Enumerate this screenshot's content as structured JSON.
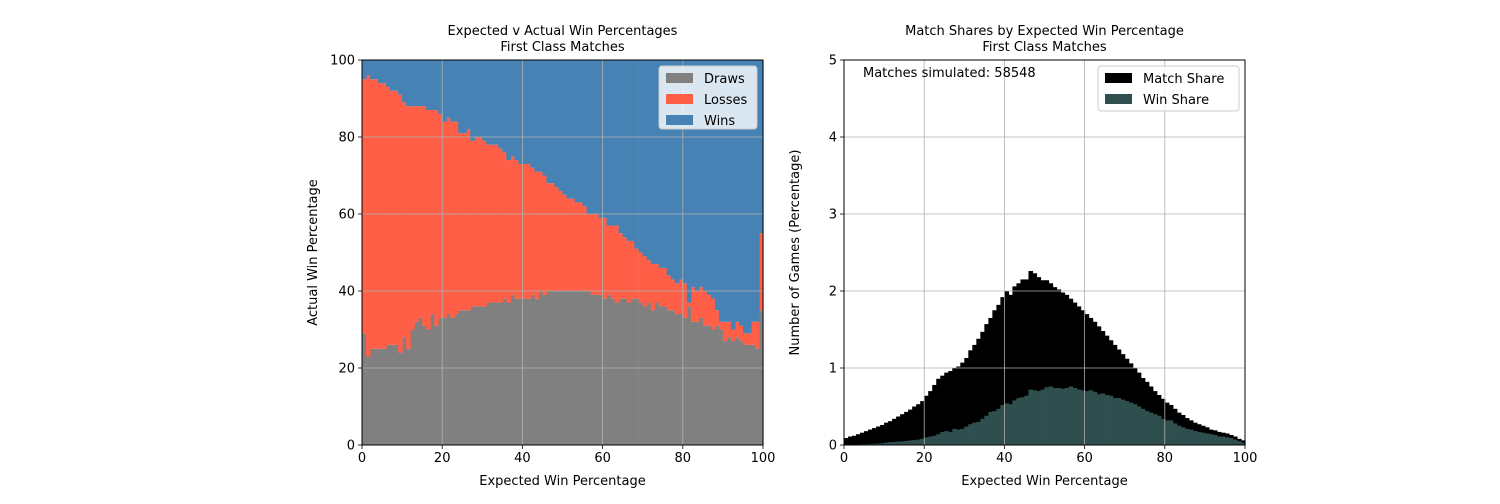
{
  "chart_data": [
    {
      "type": "bar",
      "stacked": true,
      "title": "Expected v Actual Win Percentages",
      "subtitle": "First Class Matches",
      "xlabel": "Expected Win Percentage",
      "ylabel": "Actual Win Percentage",
      "xlim": [
        0,
        100
      ],
      "ylim": [
        0,
        100
      ],
      "xticks": [
        "0",
        "20",
        "40",
        "60",
        "80",
        "100"
      ],
      "yticks": [
        "0",
        "20",
        "40",
        "60",
        "80",
        "100"
      ],
      "grid": true,
      "legend": {
        "position": "top-right"
      },
      "x": [
        0,
        1,
        2,
        3,
        4,
        5,
        6,
        7,
        8,
        9,
        10,
        11,
        12,
        13,
        14,
        15,
        16,
        17,
        18,
        19,
        20,
        21,
        22,
        23,
        24,
        25,
        26,
        27,
        28,
        29,
        30,
        31,
        32,
        33,
        34,
        35,
        36,
        37,
        38,
        39,
        40,
        41,
        42,
        43,
        44,
        45,
        46,
        47,
        48,
        49,
        50,
        51,
        52,
        53,
        54,
        55,
        56,
        57,
        58,
        59,
        60,
        61,
        62,
        63,
        64,
        65,
        66,
        67,
        67.9,
        69,
        70,
        71,
        72,
        73,
        74,
        75,
        76,
        77,
        78,
        79,
        80,
        81,
        82,
        83,
        84,
        85,
        86,
        87,
        88,
        89,
        90,
        91,
        92,
        93,
        94,
        95,
        96,
        97,
        98,
        99
      ],
      "series": [
        {
          "name": "Draws",
          "color": "#808080",
          "values": [
            29,
            23,
            25,
            25,
            25,
            25,
            26,
            26,
            26,
            24,
            28,
            25,
            30,
            32,
            33,
            31,
            30,
            34,
            31,
            33,
            33,
            34,
            33,
            34,
            35,
            35,
            35,
            36,
            36,
            36,
            36,
            37,
            37,
            37,
            37,
            38,
            37,
            39,
            38,
            38,
            38,
            38,
            39,
            38,
            40,
            39,
            40,
            40,
            40,
            40,
            40,
            40,
            40,
            40,
            40,
            40,
            40,
            39,
            39,
            39,
            38,
            39,
            38,
            37,
            38,
            38,
            37,
            38,
            38,
            37,
            36,
            37,
            35,
            37,
            36,
            36,
            35,
            35,
            34,
            34,
            33,
            36,
            32,
            32,
            33,
            31,
            31,
            30,
            31,
            30,
            27,
            28,
            27,
            28,
            27,
            26,
            26,
            26,
            25,
            35
          ]
        },
        {
          "name": "Losses",
          "color": "#ff5f47",
          "values": [
            66,
            73,
            70,
            70,
            69,
            69,
            67,
            66,
            66,
            67,
            61,
            63,
            58,
            56,
            55,
            57,
            57,
            53,
            56,
            53,
            51,
            51,
            51,
            50,
            46,
            46,
            47,
            43,
            44,
            44,
            43,
            41,
            41,
            41,
            40,
            38,
            37,
            36,
            36,
            35,
            35,
            35,
            33,
            33,
            31,
            31,
            28,
            28,
            27,
            26,
            25,
            24,
            24,
            23,
            23,
            22,
            20,
            21,
            21,
            20,
            21,
            18,
            19,
            20,
            17,
            16,
            16,
            15,
            13,
            13,
            13,
            11,
            12,
            10,
            10,
            10,
            9,
            8,
            8,
            9,
            9,
            1,
            9,
            8,
            8,
            9,
            8,
            8,
            4,
            2,
            5,
            4,
            3,
            4,
            4,
            3,
            3,
            6,
            7,
            20
          ]
        },
        {
          "name": "Wins",
          "color": "#4682b4",
          "values": [
            5,
            4,
            5,
            5,
            6,
            6,
            7,
            8,
            8,
            9,
            11,
            12,
            12,
            12,
            12,
            12,
            13,
            13,
            13,
            14,
            16,
            15,
            16,
            16,
            19,
            19,
            18,
            21,
            20,
            20,
            21,
            22,
            22,
            22,
            23,
            24,
            26,
            25,
            26,
            27,
            27,
            27,
            28,
            29,
            29,
            30,
            32,
            32,
            33,
            34,
            35,
            36,
            36,
            37,
            37,
            38,
            40,
            40,
            40,
            41,
            41,
            43,
            43,
            43,
            45,
            46,
            47,
            47,
            49,
            50,
            51,
            52,
            53,
            53,
            54,
            54,
            56,
            57,
            58,
            57,
            58,
            63,
            59,
            60,
            59,
            60,
            61,
            62,
            65,
            68,
            68,
            68,
            70,
            68,
            69,
            71,
            71,
            68,
            68,
            45
          ]
        }
      ]
    },
    {
      "type": "bar",
      "stacked": false,
      "title": "Match Shares by Expected Win Percentage",
      "subtitle": "First Class Matches",
      "xlabel": "Expected Win Percentage",
      "ylabel": "Number of Games (Percentage)",
      "xlim": [
        0,
        100
      ],
      "ylim": [
        0,
        5
      ],
      "xticks": [
        "0",
        "20",
        "40",
        "60",
        "80",
        "100"
      ],
      "yticks": [
        "0",
        "1",
        "2",
        "3",
        "4",
        "5"
      ],
      "grid": true,
      "legend": {
        "position": "top-right"
      },
      "annotation": "Matches simulated: 58548",
      "x": [
        0,
        1,
        2,
        3,
        4,
        5,
        6,
        7,
        8,
        9,
        10,
        11,
        12,
        13,
        14,
        15,
        16,
        17,
        18,
        19,
        20,
        21,
        22,
        23,
        24,
        25,
        26,
        27,
        28,
        29,
        30,
        31,
        32,
        33,
        34,
        35,
        36,
        37,
        38,
        39,
        40,
        41,
        42,
        43,
        44,
        45,
        46,
        47,
        48,
        49,
        50,
        51,
        52,
        53,
        54,
        55,
        56,
        57,
        58,
        59,
        60,
        61,
        62,
        63,
        64,
        65,
        66,
        67,
        68,
        69,
        70,
        71,
        72,
        73,
        74,
        75,
        76,
        77,
        78,
        79,
        80,
        81,
        82,
        83,
        84,
        85,
        86,
        87,
        88,
        89,
        90,
        91,
        92,
        93,
        94,
        95,
        96,
        97,
        98,
        99
      ],
      "series": [
        {
          "name": "Match Share",
          "color": "#000000",
          "values": [
            0.09,
            0.11,
            0.12,
            0.14,
            0.16,
            0.18,
            0.2,
            0.22,
            0.24,
            0.26,
            0.29,
            0.31,
            0.34,
            0.37,
            0.4,
            0.43,
            0.46,
            0.5,
            0.53,
            0.57,
            0.64,
            0.7,
            0.78,
            0.86,
            0.9,
            0.94,
            0.96,
            1.0,
            1.02,
            1.07,
            1.13,
            1.23,
            1.3,
            1.38,
            1.47,
            1.57,
            1.65,
            1.75,
            1.82,
            1.92,
            2.0,
            1.95,
            2.06,
            2.1,
            2.15,
            2.15,
            2.26,
            2.23,
            2.18,
            2.14,
            2.14,
            2.1,
            2.05,
            2.02,
            1.98,
            1.95,
            1.9,
            1.85,
            1.8,
            1.75,
            1.7,
            1.65,
            1.6,
            1.54,
            1.48,
            1.42,
            1.36,
            1.3,
            1.24,
            1.18,
            1.12,
            1.06,
            1.0,
            0.94,
            0.87,
            0.82,
            0.76,
            0.7,
            0.65,
            0.6,
            0.55,
            0.52,
            0.47,
            0.42,
            0.39,
            0.35,
            0.32,
            0.29,
            0.27,
            0.25,
            0.23,
            0.2,
            0.19,
            0.17,
            0.16,
            0.15,
            0.13,
            0.11,
            0.08,
            0.06
          ]
        },
        {
          "name": "Win Share",
          "color": "#2f4f4f",
          "values": [
            0.005,
            0.005,
            0.005,
            0.007,
            0.01,
            0.01,
            0.013,
            0.016,
            0.019,
            0.022,
            0.032,
            0.037,
            0.04,
            0.045,
            0.048,
            0.052,
            0.06,
            0.065,
            0.07,
            0.08,
            0.1,
            0.11,
            0.12,
            0.14,
            0.17,
            0.18,
            0.17,
            0.21,
            0.2,
            0.21,
            0.24,
            0.27,
            0.29,
            0.3,
            0.34,
            0.38,
            0.43,
            0.44,
            0.47,
            0.52,
            0.54,
            0.53,
            0.58,
            0.61,
            0.62,
            0.64,
            0.72,
            0.71,
            0.7,
            0.72,
            0.75,
            0.76,
            0.74,
            0.74,
            0.73,
            0.74,
            0.76,
            0.74,
            0.72,
            0.71,
            0.7,
            0.71,
            0.69,
            0.66,
            0.67,
            0.65,
            0.64,
            0.61,
            0.61,
            0.59,
            0.57,
            0.55,
            0.53,
            0.5,
            0.47,
            0.44,
            0.42,
            0.4,
            0.38,
            0.34,
            0.32,
            0.32,
            0.28,
            0.25,
            0.23,
            0.21,
            0.2,
            0.18,
            0.17,
            0.16,
            0.15,
            0.14,
            0.13,
            0.11,
            0.11,
            0.1,
            0.09,
            0.07,
            0.05,
            0.03
          ]
        }
      ]
    }
  ]
}
